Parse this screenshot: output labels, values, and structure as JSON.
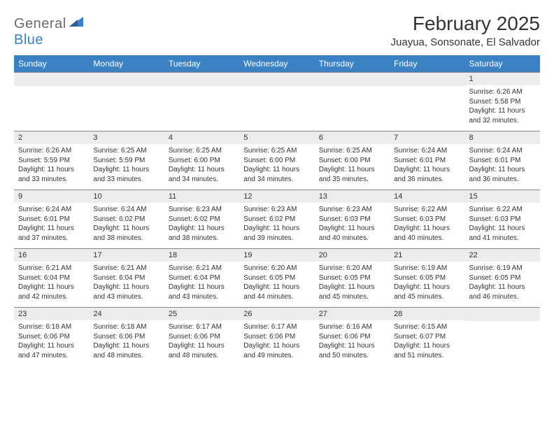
{
  "logo": {
    "top": "General",
    "bottom": "Blue"
  },
  "title": "February 2025",
  "subtitle": "Juayua, Sonsonate, El Salvador",
  "colors": {
    "header_bg": "#3b82c4",
    "header_text": "#ffffff",
    "daynum_bg": "#ececec",
    "text": "#333333",
    "border": "#888888",
    "logo_gray": "#6b6b6b",
    "logo_blue": "#3b82c4",
    "page_bg": "#ffffff"
  },
  "day_headers": [
    "Sunday",
    "Monday",
    "Tuesday",
    "Wednesday",
    "Thursday",
    "Friday",
    "Saturday"
  ],
  "weeks": [
    [
      {
        "n": "",
        "sr": "",
        "ss": "",
        "dl": ""
      },
      {
        "n": "",
        "sr": "",
        "ss": "",
        "dl": ""
      },
      {
        "n": "",
        "sr": "",
        "ss": "",
        "dl": ""
      },
      {
        "n": "",
        "sr": "",
        "ss": "",
        "dl": ""
      },
      {
        "n": "",
        "sr": "",
        "ss": "",
        "dl": ""
      },
      {
        "n": "",
        "sr": "",
        "ss": "",
        "dl": ""
      },
      {
        "n": "1",
        "sr": "Sunrise: 6:26 AM",
        "ss": "Sunset: 5:58 PM",
        "dl": "Daylight: 11 hours and 32 minutes."
      }
    ],
    [
      {
        "n": "2",
        "sr": "Sunrise: 6:26 AM",
        "ss": "Sunset: 5:59 PM",
        "dl": "Daylight: 11 hours and 33 minutes."
      },
      {
        "n": "3",
        "sr": "Sunrise: 6:25 AM",
        "ss": "Sunset: 5:59 PM",
        "dl": "Daylight: 11 hours and 33 minutes."
      },
      {
        "n": "4",
        "sr": "Sunrise: 6:25 AM",
        "ss": "Sunset: 6:00 PM",
        "dl": "Daylight: 11 hours and 34 minutes."
      },
      {
        "n": "5",
        "sr": "Sunrise: 6:25 AM",
        "ss": "Sunset: 6:00 PM",
        "dl": "Daylight: 11 hours and 34 minutes."
      },
      {
        "n": "6",
        "sr": "Sunrise: 6:25 AM",
        "ss": "Sunset: 6:00 PM",
        "dl": "Daylight: 11 hours and 35 minutes."
      },
      {
        "n": "7",
        "sr": "Sunrise: 6:24 AM",
        "ss": "Sunset: 6:01 PM",
        "dl": "Daylight: 11 hours and 36 minutes."
      },
      {
        "n": "8",
        "sr": "Sunrise: 6:24 AM",
        "ss": "Sunset: 6:01 PM",
        "dl": "Daylight: 11 hours and 36 minutes."
      }
    ],
    [
      {
        "n": "9",
        "sr": "Sunrise: 6:24 AM",
        "ss": "Sunset: 6:01 PM",
        "dl": "Daylight: 11 hours and 37 minutes."
      },
      {
        "n": "10",
        "sr": "Sunrise: 6:24 AM",
        "ss": "Sunset: 6:02 PM",
        "dl": "Daylight: 11 hours and 38 minutes."
      },
      {
        "n": "11",
        "sr": "Sunrise: 6:23 AM",
        "ss": "Sunset: 6:02 PM",
        "dl": "Daylight: 11 hours and 38 minutes."
      },
      {
        "n": "12",
        "sr": "Sunrise: 6:23 AM",
        "ss": "Sunset: 6:02 PM",
        "dl": "Daylight: 11 hours and 39 minutes."
      },
      {
        "n": "13",
        "sr": "Sunrise: 6:23 AM",
        "ss": "Sunset: 6:03 PM",
        "dl": "Daylight: 11 hours and 40 minutes."
      },
      {
        "n": "14",
        "sr": "Sunrise: 6:22 AM",
        "ss": "Sunset: 6:03 PM",
        "dl": "Daylight: 11 hours and 40 minutes."
      },
      {
        "n": "15",
        "sr": "Sunrise: 6:22 AM",
        "ss": "Sunset: 6:03 PM",
        "dl": "Daylight: 11 hours and 41 minutes."
      }
    ],
    [
      {
        "n": "16",
        "sr": "Sunrise: 6:21 AM",
        "ss": "Sunset: 6:04 PM",
        "dl": "Daylight: 11 hours and 42 minutes."
      },
      {
        "n": "17",
        "sr": "Sunrise: 6:21 AM",
        "ss": "Sunset: 6:04 PM",
        "dl": "Daylight: 11 hours and 43 minutes."
      },
      {
        "n": "18",
        "sr": "Sunrise: 6:21 AM",
        "ss": "Sunset: 6:04 PM",
        "dl": "Daylight: 11 hours and 43 minutes."
      },
      {
        "n": "19",
        "sr": "Sunrise: 6:20 AM",
        "ss": "Sunset: 6:05 PM",
        "dl": "Daylight: 11 hours and 44 minutes."
      },
      {
        "n": "20",
        "sr": "Sunrise: 6:20 AM",
        "ss": "Sunset: 6:05 PM",
        "dl": "Daylight: 11 hours and 45 minutes."
      },
      {
        "n": "21",
        "sr": "Sunrise: 6:19 AM",
        "ss": "Sunset: 6:05 PM",
        "dl": "Daylight: 11 hours and 45 minutes."
      },
      {
        "n": "22",
        "sr": "Sunrise: 6:19 AM",
        "ss": "Sunset: 6:05 PM",
        "dl": "Daylight: 11 hours and 46 minutes."
      }
    ],
    [
      {
        "n": "23",
        "sr": "Sunrise: 6:18 AM",
        "ss": "Sunset: 6:06 PM",
        "dl": "Daylight: 11 hours and 47 minutes."
      },
      {
        "n": "24",
        "sr": "Sunrise: 6:18 AM",
        "ss": "Sunset: 6:06 PM",
        "dl": "Daylight: 11 hours and 48 minutes."
      },
      {
        "n": "25",
        "sr": "Sunrise: 6:17 AM",
        "ss": "Sunset: 6:06 PM",
        "dl": "Daylight: 11 hours and 48 minutes."
      },
      {
        "n": "26",
        "sr": "Sunrise: 6:17 AM",
        "ss": "Sunset: 6:06 PM",
        "dl": "Daylight: 11 hours and 49 minutes."
      },
      {
        "n": "27",
        "sr": "Sunrise: 6:16 AM",
        "ss": "Sunset: 6:06 PM",
        "dl": "Daylight: 11 hours and 50 minutes."
      },
      {
        "n": "28",
        "sr": "Sunrise: 6:15 AM",
        "ss": "Sunset: 6:07 PM",
        "dl": "Daylight: 11 hours and 51 minutes."
      },
      {
        "n": "",
        "sr": "",
        "ss": "",
        "dl": ""
      }
    ]
  ]
}
